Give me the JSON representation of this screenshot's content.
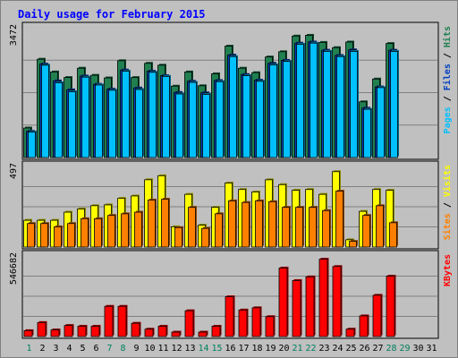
{
  "chart_data": {
    "type": "bar",
    "title": "Daily usage for February 2015",
    "categories": [
      "1",
      "2",
      "3",
      "4",
      "5",
      "6",
      "7",
      "8",
      "9",
      "10",
      "11",
      "12",
      "13",
      "14",
      "15",
      "16",
      "17",
      "18",
      "19",
      "20",
      "21",
      "22",
      "23",
      "24",
      "25",
      "26",
      "27",
      "28",
      "29",
      "30",
      "31"
    ],
    "weekend_days": [
      "1",
      "7",
      "8",
      "14",
      "15",
      "21",
      "22",
      "28",
      "29"
    ],
    "panels": [
      {
        "id": "hits-files-pages",
        "ymax": 3472,
        "ymax_label": "3472",
        "legend": [
          "Pages",
          "Files",
          "Hits"
        ],
        "series": [
          {
            "name": "Hits",
            "color": "#208050",
            "values": [
              790,
              2630,
              2290,
              2140,
              2390,
              2200,
              2130,
              2590,
              2140,
              2520,
              2470,
              1910,
              2290,
              1920,
              2240,
              2980,
              2390,
              2270,
              2690,
              2830,
              3250,
              3270,
              3080,
              2940,
              3090,
              1490,
              2100,
              3050,
              0,
              0,
              0
            ]
          },
          {
            "name": "Files",
            "color": "#0040c0",
            "values": [
              700,
              2500,
              2050,
              1810,
              2180,
              1960,
              1830,
              2340,
              1860,
              2310,
              2190,
              1740,
              2040,
              1730,
              2060,
              2740,
              2220,
              2070,
              2520,
              2600,
              3060,
              3090,
              2870,
              2730,
              2880,
              1320,
              1890,
              2870,
              0,
              0,
              0
            ]
          },
          {
            "name": "Pages",
            "color": "#00c0ff",
            "values": [
              680,
              2470,
              2000,
              1760,
              2150,
              1940,
              1800,
              2310,
              1820,
              2280,
              2170,
              1700,
              2010,
              1690,
              2030,
              2700,
              2190,
              2040,
              2480,
              2570,
              3030,
              3060,
              2840,
              2700,
              2840,
              1290,
              1870,
              2840,
              0,
              0,
              0
            ]
          }
        ]
      },
      {
        "id": "visits-sites",
        "ymax": 497,
        "ymax_label": "497",
        "legend": [
          "Sites",
          "Visits"
        ],
        "series": [
          {
            "name": "Visits",
            "color": "#ffff00",
            "values": [
              165,
              165,
              165,
              215,
              235,
              255,
              260,
              300,
              315,
              415,
              440,
              125,
              325,
              135,
              245,
              395,
              355,
              340,
              415,
              385,
              350,
              355,
              325,
              465,
              45,
              220,
              355,
              350,
              0,
              0,
              0
            ]
          },
          {
            "name": "Sites",
            "color": "#ff8000",
            "values": [
              145,
              145,
              125,
              145,
              175,
              175,
              195,
              205,
              215,
              290,
              295,
              120,
              245,
              115,
              205,
              285,
              275,
              285,
              280,
              245,
              245,
              245,
              225,
              345,
              35,
              195,
              255,
              150,
              0,
              0,
              0
            ]
          }
        ]
      },
      {
        "id": "kbytes",
        "ymax": 546682,
        "ymax_label": "546682",
        "legend": [
          "KBytes"
        ],
        "series": [
          {
            "name": "KBytes",
            "color": "#ff0000",
            "values": [
              40000,
              95000,
              45000,
              75000,
              70000,
              70000,
              205000,
              205000,
              90000,
              50000,
              70000,
              30000,
              175000,
              30000,
              70000,
              270000,
              180000,
              195000,
              135000,
              465000,
              380000,
              405000,
              525000,
              475000,
              50000,
              140000,
              280000,
              410000,
              0,
              0,
              0
            ]
          }
        ]
      }
    ]
  }
}
